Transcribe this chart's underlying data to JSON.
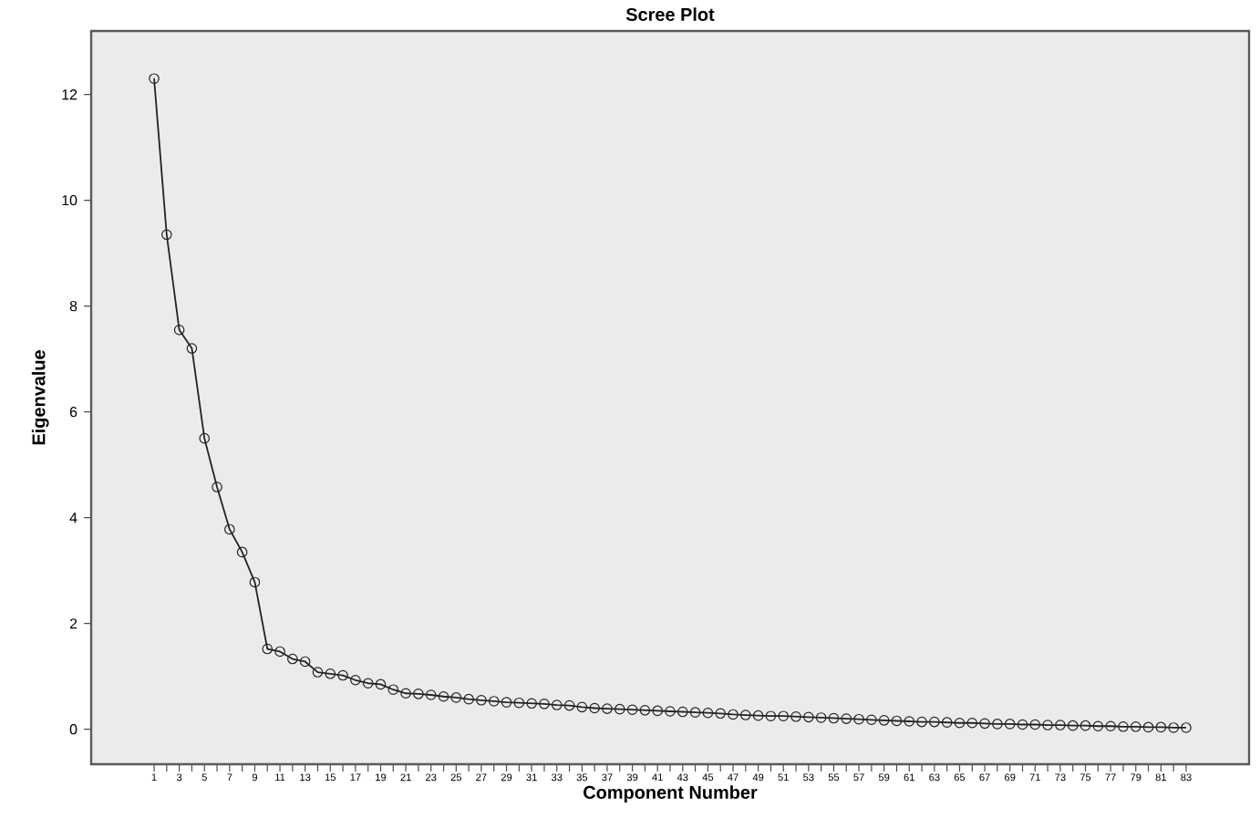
{
  "chart_data": {
    "type": "line",
    "title": "Scree Plot",
    "xlabel": "Component Number",
    "ylabel": "Eigenvalue",
    "x": [
      1,
      2,
      3,
      4,
      5,
      6,
      7,
      8,
      9,
      10,
      11,
      12,
      13,
      14,
      15,
      16,
      17,
      18,
      19,
      20,
      21,
      22,
      23,
      24,
      25,
      26,
      27,
      28,
      29,
      30,
      31,
      32,
      33,
      34,
      35,
      36,
      37,
      38,
      39,
      40,
      41,
      42,
      43,
      44,
      45,
      46,
      47,
      48,
      49,
      50,
      51,
      52,
      53,
      54,
      55,
      56,
      57,
      58,
      59,
      60,
      61,
      62,
      63,
      64,
      65,
      66,
      67,
      68,
      69,
      70,
      71,
      72,
      73,
      74,
      75,
      76,
      77,
      78,
      79,
      80,
      81,
      82,
      83
    ],
    "values": [
      12.3,
      9.35,
      7.55,
      7.2,
      5.5,
      4.58,
      3.78,
      3.35,
      2.78,
      1.52,
      1.47,
      1.33,
      1.28,
      1.08,
      1.05,
      1.02,
      0.93,
      0.87,
      0.85,
      0.75,
      0.68,
      0.67,
      0.65,
      0.62,
      0.6,
      0.57,
      0.55,
      0.53,
      0.51,
      0.5,
      0.49,
      0.48,
      0.46,
      0.45,
      0.42,
      0.4,
      0.39,
      0.38,
      0.37,
      0.36,
      0.35,
      0.34,
      0.33,
      0.32,
      0.31,
      0.3,
      0.28,
      0.27,
      0.26,
      0.25,
      0.25,
      0.24,
      0.23,
      0.22,
      0.21,
      0.2,
      0.19,
      0.18,
      0.17,
      0.16,
      0.15,
      0.14,
      0.14,
      0.13,
      0.12,
      0.12,
      0.11,
      0.1,
      0.1,
      0.09,
      0.09,
      0.08,
      0.08,
      0.07,
      0.07,
      0.06,
      0.06,
      0.05,
      0.05,
      0.04,
      0.04,
      0.03,
      0.03
    ],
    "color": "#222222",
    "marker": "circle",
    "line_style": "solid",
    "grid": false,
    "xlim": [
      -4,
      88
    ],
    "ylim": [
      -0.66,
      13.2
    ],
    "yticks": [
      0,
      2,
      4,
      6,
      8,
      10,
      12
    ],
    "xticks": [
      1,
      {
        "value": 2,
        "label": null
      },
      3,
      {
        "value": 4,
        "label": null
      },
      5,
      {
        "value": 6,
        "label": null
      },
      7,
      {
        "value": 8,
        "label": null
      },
      9,
      {
        "value": 10,
        "label": null
      },
      11,
      {
        "value": 12,
        "label": null
      },
      13,
      {
        "value": 14,
        "label": null
      },
      15,
      {
        "value": 16,
        "label": null
      },
      17,
      {
        "value": 18,
        "label": null
      },
      19,
      {
        "value": 20,
        "label": null
      },
      21,
      {
        "value": 22,
        "label": null
      },
      23,
      {
        "value": 24,
        "label": null
      },
      25,
      {
        "value": 26,
        "label": null
      },
      27,
      {
        "value": 28,
        "label": null
      },
      29,
      {
        "value": 30,
        "label": null
      },
      31,
      {
        "value": 32,
        "label": null
      },
      33,
      {
        "value": 34,
        "label": null
      },
      35,
      {
        "value": 36,
        "label": null
      },
      37,
      {
        "value": 38,
        "label": null
      },
      39,
      {
        "value": 40,
        "label": null
      },
      41,
      {
        "value": 42,
        "label": null
      },
      43,
      {
        "value": 44,
        "label": null
      },
      45,
      {
        "value": 46,
        "label": null
      },
      47,
      {
        "value": 48,
        "label": null
      },
      49,
      {
        "value": 50,
        "label": null
      },
      51,
      {
        "value": 52,
        "label": null
      },
      53,
      {
        "value": 54,
        "label": null
      },
      55,
      {
        "value": 56,
        "label": null
      },
      57,
      {
        "value": 58,
        "label": null
      },
      59,
      {
        "value": 60,
        "label": null
      },
      61,
      {
        "value": 62,
        "label": null
      },
      63,
      {
        "value": 64,
        "label": null
      },
      65,
      {
        "value": 66,
        "label": null
      },
      67,
      {
        "value": 68,
        "label": null
      },
      69,
      {
        "value": 70,
        "label": null
      },
      71,
      {
        "value": 72,
        "label": null
      },
      73,
      {
        "value": 74,
        "label": null
      },
      75,
      {
        "value": 76,
        "label": null
      },
      77,
      {
        "value": 78,
        "label": null
      },
      79,
      {
        "value": 80,
        "label": null
      },
      81,
      {
        "value": 82,
        "label": null
      },
      83
    ]
  }
}
